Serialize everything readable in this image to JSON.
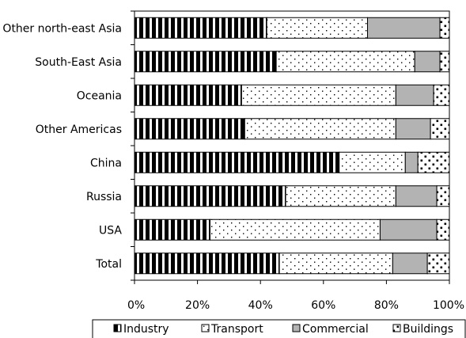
{
  "chart_data": {
    "type": "bar",
    "orientation": "horizontal",
    "stacking": "percent",
    "categories": [
      "Other north-east Asia",
      "South-East Asia",
      "Oceania",
      "Other Americas",
      "China",
      "Russia",
      "USA",
      "Total"
    ],
    "series": [
      {
        "name": "Industry",
        "pattern": "vertical-stripes",
        "color": "#000000",
        "values": [
          42,
          45,
          34,
          35,
          65,
          48,
          24,
          46
        ]
      },
      {
        "name": "Transport",
        "pattern": "dots",
        "color": "#ffffff",
        "values": [
          32,
          44,
          49,
          48,
          21,
          35,
          54,
          36
        ]
      },
      {
        "name": "Commercial",
        "pattern": "solid-gray",
        "color": "#b3b3b3",
        "values": [
          23,
          8,
          12,
          11,
          4,
          13,
          18,
          11
        ]
      },
      {
        "name": "Buildings",
        "pattern": "sparse-dots",
        "color": "#ffffff",
        "values": [
          3,
          3,
          5,
          6,
          10,
          4,
          4,
          7
        ]
      }
    ],
    "x_ticks": [
      "0%",
      "20%",
      "40%",
      "60%",
      "80%",
      "100%"
    ],
    "xlim": [
      0,
      100
    ],
    "legend_position": "bottom",
    "grid": false
  }
}
